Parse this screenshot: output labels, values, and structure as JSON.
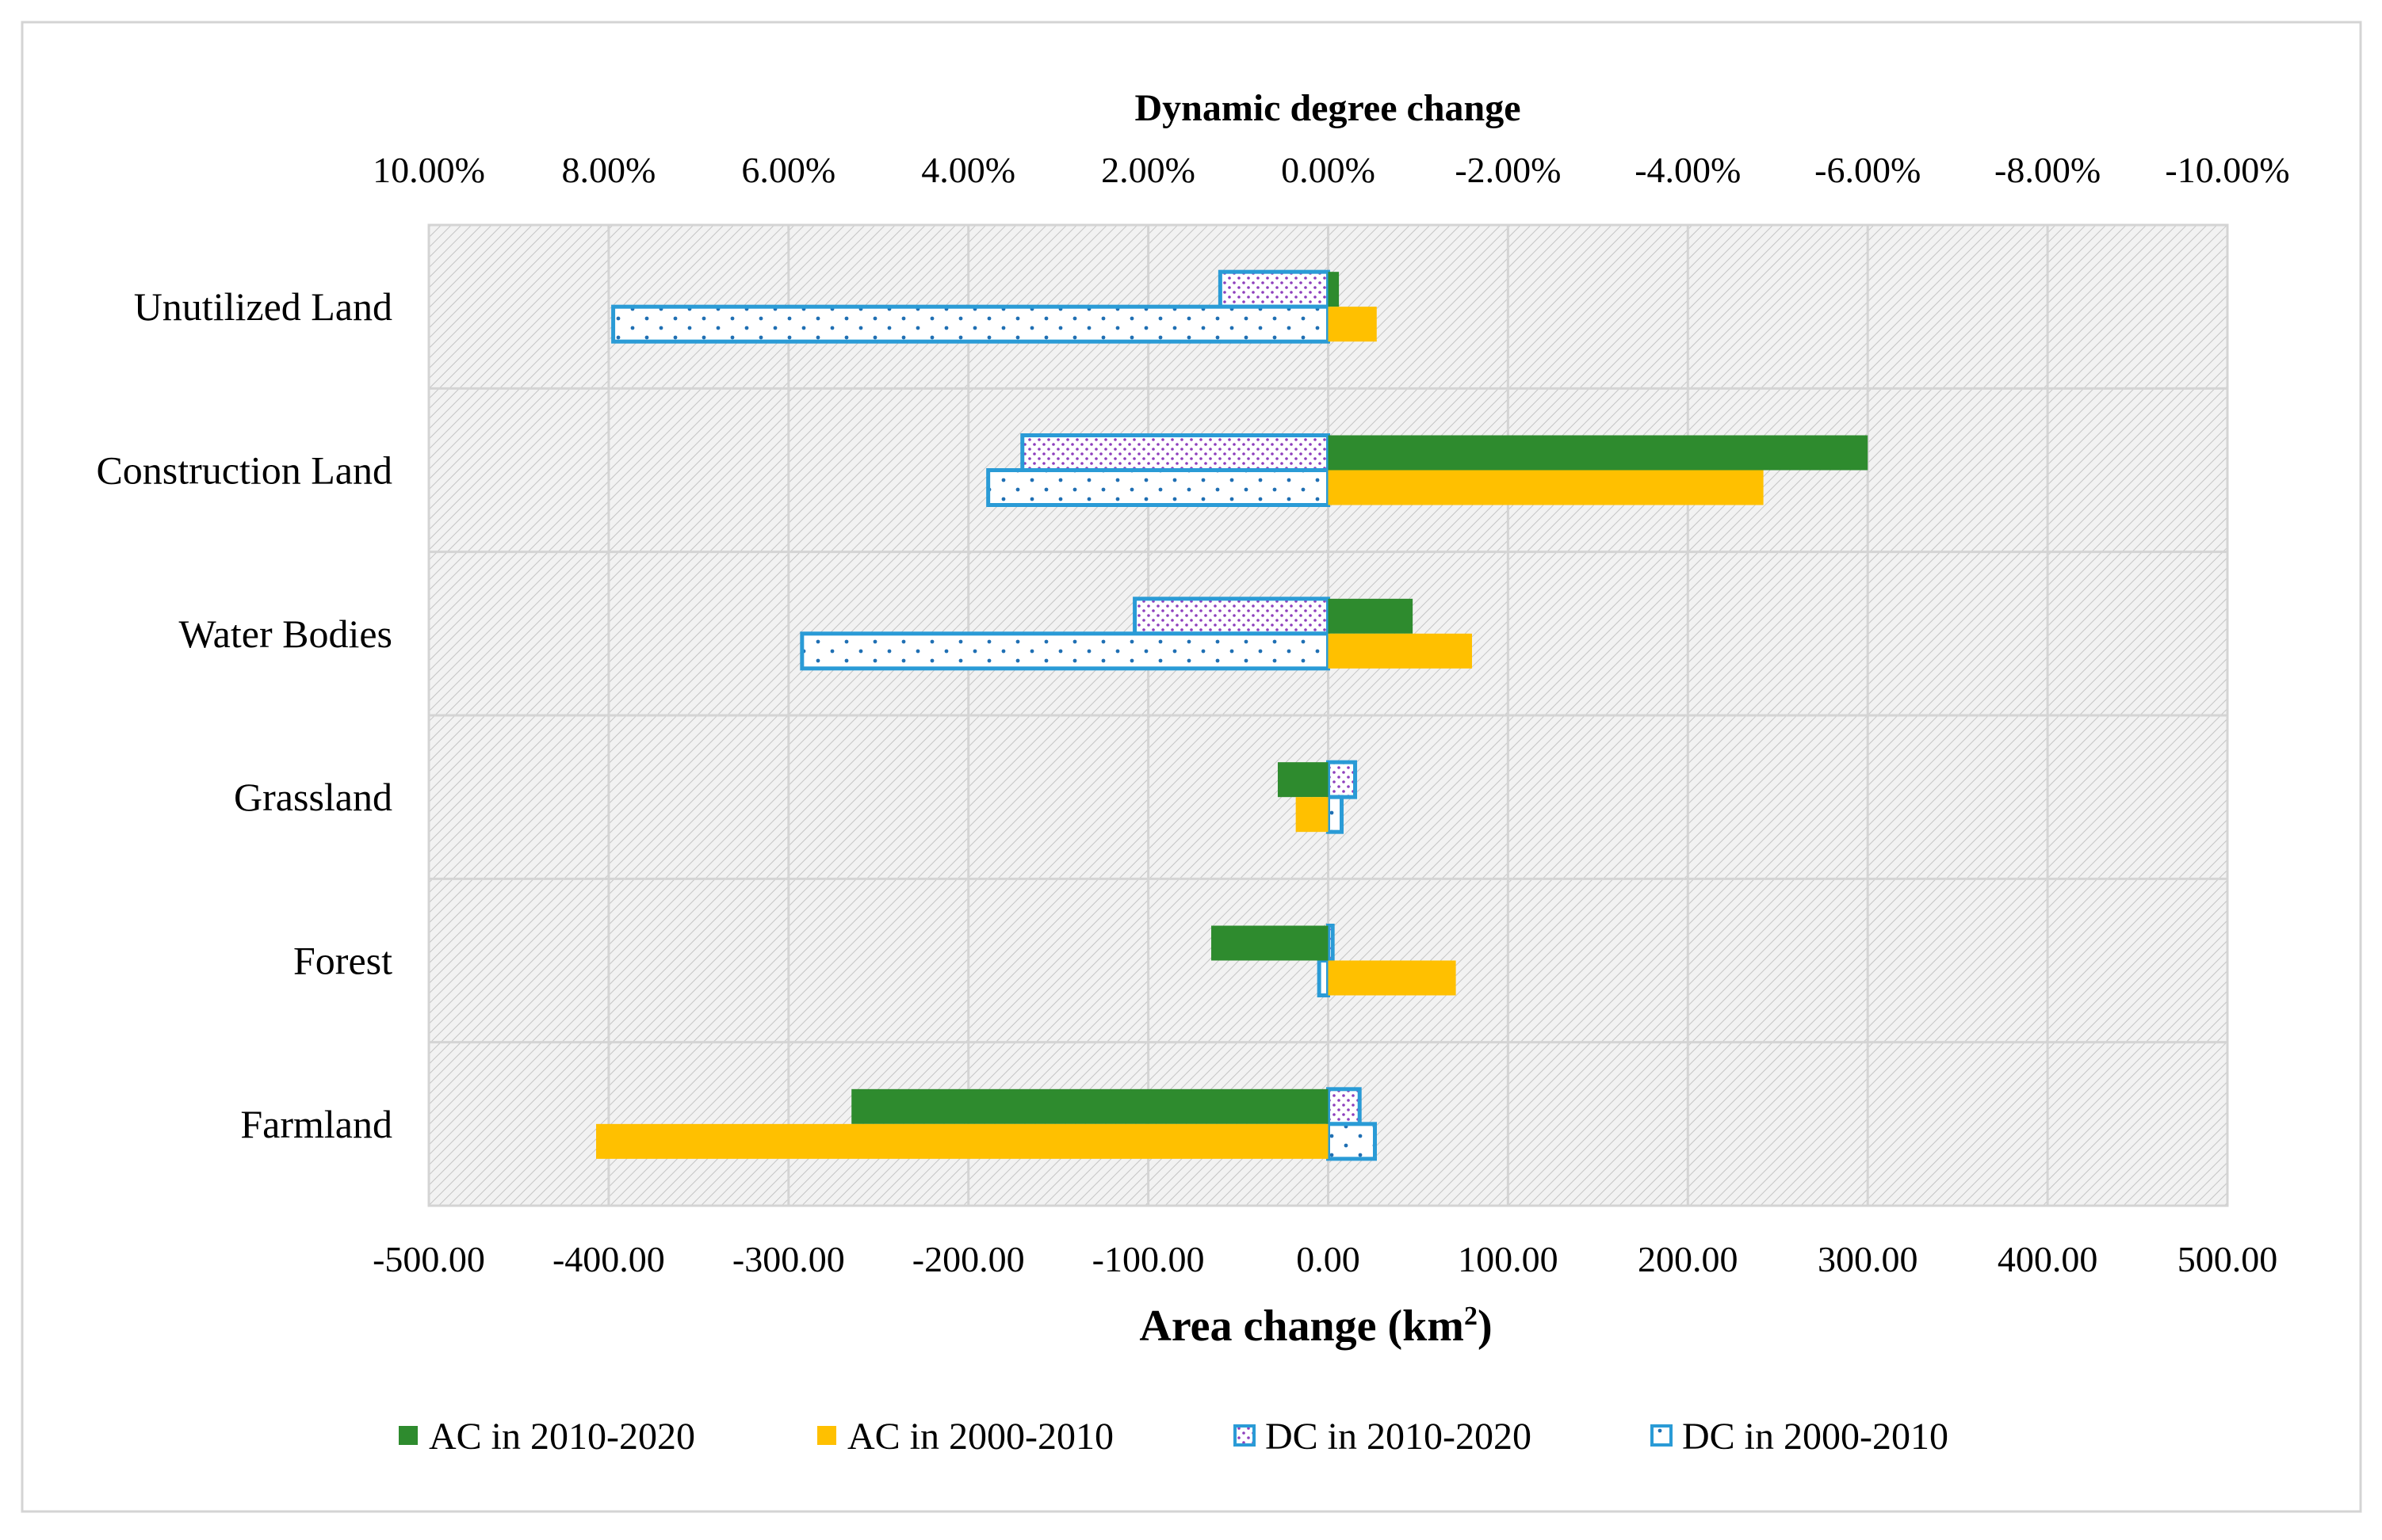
{
  "chart_data": {
    "type": "bar",
    "orientation": "horizontal",
    "categories": [
      "Unutilized Land",
      "Construction Land",
      "Water Bodies",
      "Grassland",
      "Forest",
      "Farmland"
    ],
    "series": [
      {
        "name": "AC in 2010-2020",
        "axis": "area",
        "color": "#2e8b2e",
        "values": [
          6,
          300,
          47,
          -28,
          -65,
          -265
        ]
      },
      {
        "name": "AC in 2000-2010",
        "axis": "area",
        "color": "#ffc000",
        "values": [
          27,
          242,
          80,
          -18,
          71,
          -407
        ]
      },
      {
        "name": "DC in 2010-2020",
        "axis": "dynamic",
        "color": "#2a9bd6",
        "pattern": "dots-purple",
        "values": [
          1.2,
          3.4,
          2.15,
          -0.3,
          -0.05,
          -0.35
        ]
      },
      {
        "name": "DC in 2000-2010",
        "axis": "dynamic",
        "color": "#2a9bd6",
        "pattern": "dots-blue",
        "values": [
          7.95,
          3.78,
          5.85,
          -0.15,
          0.1,
          -0.52
        ]
      }
    ],
    "xlabel": "Area change (km²)",
    "xlabel_main": "Area change (km",
    "xlabel_sup": "2",
    "xlabel_end": ")",
    "x2label": "Dynamic degree change",
    "xlim": [
      -500,
      500
    ],
    "x2lim": [
      10,
      -10
    ],
    "xticks": [
      "-500.00",
      "-400.00",
      "-300.00",
      "-200.00",
      "-100.00",
      "0.00",
      "100.00",
      "200.00",
      "300.00",
      "400.00",
      "500.00"
    ],
    "x2ticks": [
      "10.00%",
      "8.00%",
      "6.00%",
      "4.00%",
      "2.00%",
      "0.00%",
      "-2.00%",
      "-4.00%",
      "-6.00%",
      "-8.00%",
      "-10.00%"
    ],
    "legend_position": "bottom",
    "grid": true
  }
}
